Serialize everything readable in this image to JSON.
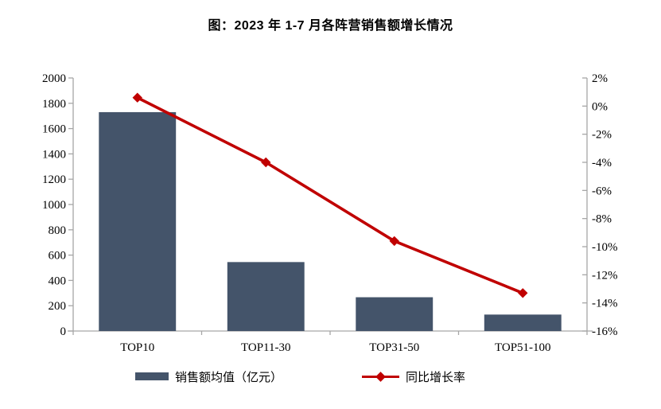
{
  "title": "图：2023 年 1-7 月各阵营销售额增长情况",
  "colors": {
    "bar": "#44546A",
    "line": "#C00000",
    "axis": "#A6A6A6",
    "text": "#000000",
    "background": "#FFFFFF"
  },
  "chart_data": {
    "type": "bar+line",
    "title": "图：2023 年 1-7 月各阵营销售额增长情况",
    "categories": [
      "TOP10",
      "TOP11-30",
      "TOP31-50",
      "TOP51-100"
    ],
    "series": [
      {
        "name": "销售额均值（亿元）",
        "type": "bar",
        "yaxis": "left",
        "values": [
          1730,
          545,
          267,
          130
        ]
      },
      {
        "name": "同比增长率",
        "type": "line",
        "yaxis": "right",
        "unit": "%",
        "values": [
          0.6,
          -4.0,
          -9.6,
          -13.3
        ]
      }
    ],
    "left_axis": {
      "min": 0,
      "max": 2000,
      "step": 200,
      "tick_labels": [
        "2000",
        "1800",
        "1600",
        "1400",
        "1200",
        "1000",
        "800",
        "600",
        "400",
        "200",
        "0"
      ]
    },
    "right_axis": {
      "min": -16,
      "max": 2,
      "step": 2,
      "tick_labels": [
        "2%",
        "0%",
        "-2%",
        "-4%",
        "-6%",
        "-8%",
        "-10%",
        "-12%",
        "-14%",
        "-16%"
      ]
    },
    "grid": false,
    "legend_position": "bottom"
  },
  "legend": {
    "items": [
      {
        "label": "销售额均值（亿元）",
        "swatch": "bar"
      },
      {
        "label": "同比增长率",
        "swatch": "line-diamond"
      }
    ]
  }
}
